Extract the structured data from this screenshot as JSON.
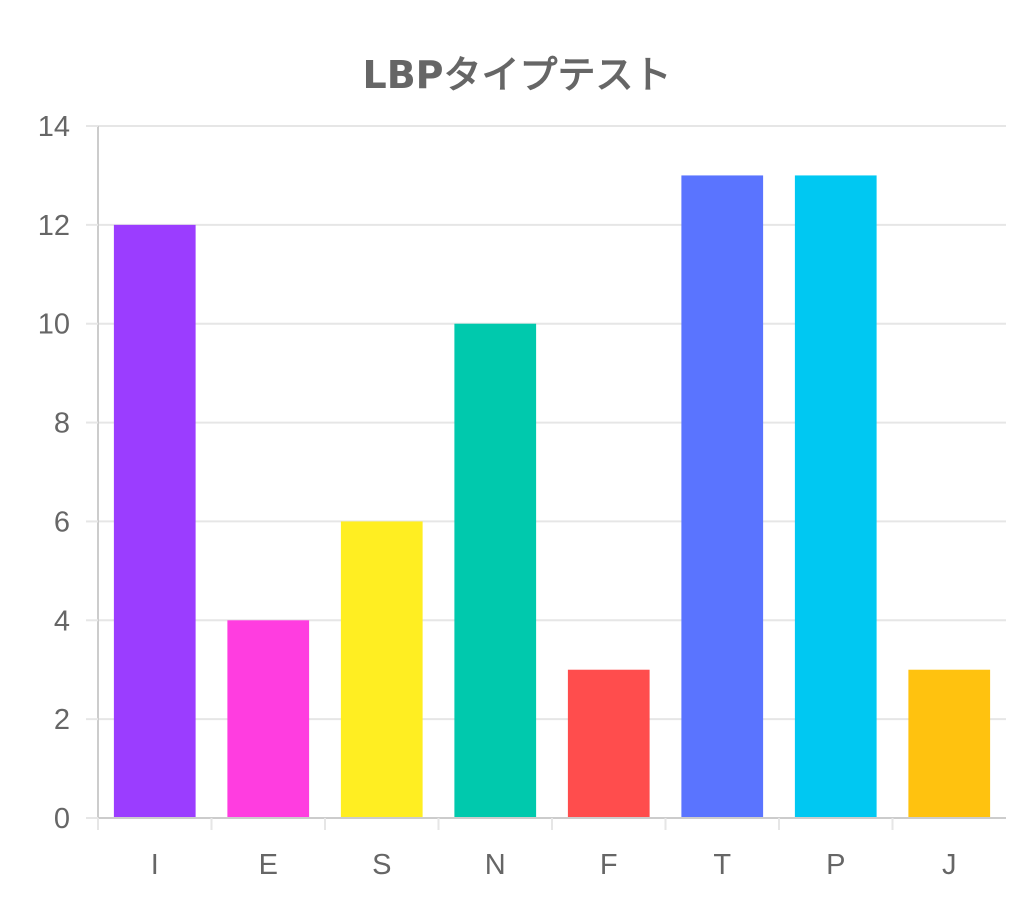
{
  "chart_data": {
    "type": "bar",
    "title": "LBPタイプテスト",
    "categories": [
      "I",
      "E",
      "S",
      "N",
      "F",
      "T",
      "P",
      "J"
    ],
    "values": [
      12,
      4,
      6,
      10,
      3,
      13,
      13,
      3
    ],
    "colors": [
      "#9b3dff",
      "#ff3de0",
      "#ffee22",
      "#00c9ad",
      "#ff4d4d",
      "#5a74ff",
      "#00c8f2",
      "#ffc20f"
    ],
    "xlabel": "",
    "ylabel": "",
    "ylim": [
      0,
      14
    ],
    "yticks": [
      0,
      2,
      4,
      6,
      8,
      10,
      12,
      14
    ],
    "grid": true,
    "legend": "none"
  }
}
